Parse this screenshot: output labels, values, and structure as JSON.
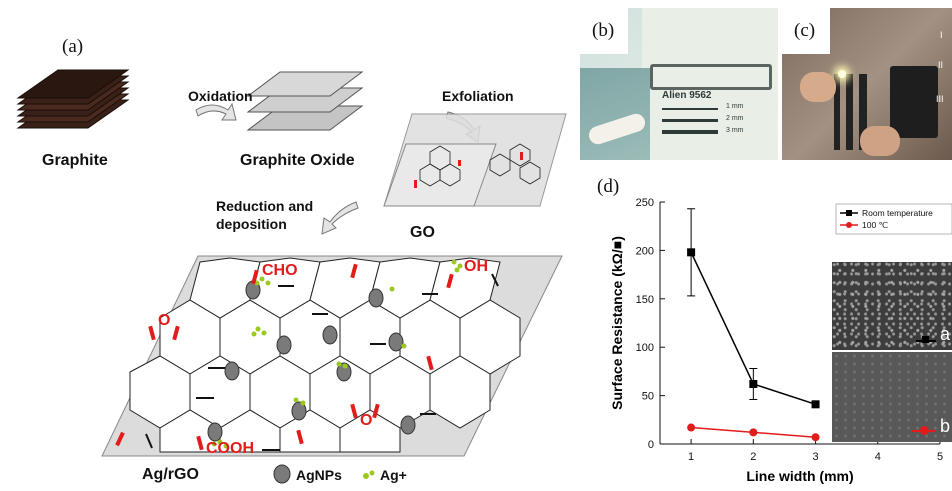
{
  "panels": {
    "a": {
      "letter": "(a)",
      "graphite": "Graphite",
      "oxidation": "Oxidation",
      "graphite_oxide": "Graphite Oxide",
      "exfoliation": "Exfoliation",
      "go": "GO",
      "reduction": "Reduction and",
      "deposition": "deposition",
      "product": "Ag/rGO",
      "legend_agnps": "AgNPs",
      "legend_ag": "Ag+",
      "groups": {
        "cho": "CHO",
        "oh": "OH",
        "o1": "O",
        "o2": "O",
        "cooh": "COOH"
      }
    },
    "b": {
      "letter": "(b)",
      "brand": "Alien 9562",
      "widths": [
        "1 mm",
        "2 mm",
        "3 mm"
      ]
    },
    "c": {
      "letter": "(c)",
      "markers": [
        "I",
        "II",
        "III"
      ]
    },
    "d": {
      "letter": "(d)",
      "inset_a": "a",
      "inset_b": "b"
    }
  },
  "chart_data": {
    "type": "line",
    "xlabel": "Line width (mm)",
    "ylabel": "Surface Resistance (kΩ/■)",
    "xlim": [
      0.5,
      5
    ],
    "ylim": [
      0,
      250
    ],
    "xticks": [
      "1",
      "2",
      "3",
      "4",
      "5"
    ],
    "yticks": [
      "0",
      "50",
      "100",
      "150",
      "200",
      "250"
    ],
    "x": [
      1,
      2,
      3
    ],
    "series": [
      {
        "name": "Room temperature",
        "values": [
          198,
          62,
          41
        ],
        "errors": [
          45,
          16,
          0
        ],
        "color": "#000000",
        "marker": "square"
      },
      {
        "name": "100 ℃",
        "values": [
          17,
          12,
          7
        ],
        "color": "#e21b1b",
        "marker": "circle"
      }
    ],
    "legend_position": "top-right",
    "grid": false
  }
}
